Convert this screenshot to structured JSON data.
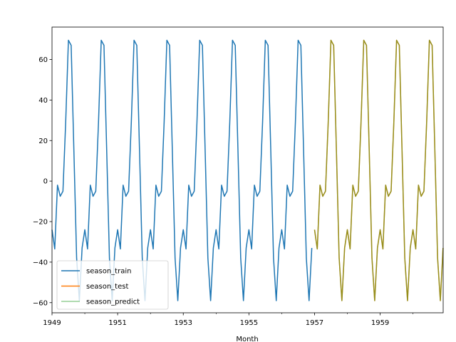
{
  "chart_data": {
    "type": "line",
    "title": "",
    "xlabel": "Month",
    "ylabel": "",
    "xlim": [
      1949.0,
      1960.92
    ],
    "ylim": [
      -65,
      76
    ],
    "x_ticks": [
      1949,
      1951,
      1953,
      1955,
      1957,
      1959
    ],
    "x_minor_ticks": [
      1950,
      1952,
      1954,
      1956,
      1958,
      1960
    ],
    "y_ticks": [
      -60,
      -40,
      -20,
      0,
      20,
      40,
      60
    ],
    "grid": false,
    "legend_position": "lower-left",
    "seasonal_pattern": [
      -24,
      -33.5,
      -2,
      -7.5,
      -5,
      29,
      69.5,
      67,
      15,
      -38,
      -59,
      -33
    ],
    "series": [
      {
        "name": "season_train",
        "color": "#1f77b4",
        "start": 1949.0,
        "end": 1956.92
      },
      {
        "name": "season_test",
        "color": "#ff7f0e",
        "start": 1957.0,
        "end": 1960.92
      },
      {
        "name": "season_predict",
        "color": "#2ca02c",
        "start": 1957.0,
        "end": 1960.92
      }
    ]
  }
}
